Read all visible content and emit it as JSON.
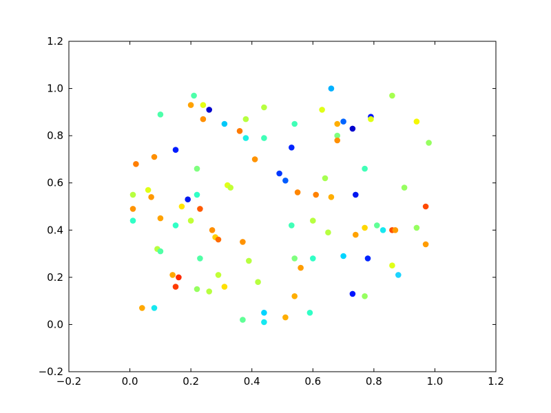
{
  "chart_data": {
    "type": "scatter",
    "title": "",
    "xlabel": "",
    "ylabel": "",
    "xlim": [
      -0.2,
      1.2
    ],
    "ylim": [
      -0.2,
      1.2
    ],
    "xticks": [
      -0.2,
      0.0,
      0.2,
      0.4,
      0.6,
      0.8,
      1.0,
      1.2
    ],
    "yticks": [
      -0.2,
      0.0,
      0.2,
      0.4,
      0.6,
      0.8,
      1.0,
      1.2
    ],
    "xtick_labels": [
      "−0.2",
      "0.0",
      "0.2",
      "0.4",
      "0.6",
      "0.8",
      "1.0",
      "1.2"
    ],
    "ytick_labels": [
      "−0.2",
      "0.0",
      "0.2",
      "0.4",
      "0.6",
      "0.8",
      "1.0",
      "1.2"
    ],
    "grid": false,
    "legend": "none",
    "colormap": "jet",
    "points": [
      {
        "x": 0.66,
        "y": 1.0,
        "color": "#00b0ff"
      },
      {
        "x": 0.21,
        "y": 0.97,
        "color": "#4dffaa"
      },
      {
        "x": 0.86,
        "y": 0.97,
        "color": "#a6ff50"
      },
      {
        "x": 0.2,
        "y": 0.93,
        "color": "#ffa200"
      },
      {
        "x": 0.24,
        "y": 0.93,
        "color": "#e4ff13"
      },
      {
        "x": 0.26,
        "y": 0.91,
        "color": "#0000cd"
      },
      {
        "x": 0.44,
        "y": 0.92,
        "color": "#b7ff40"
      },
      {
        "x": 0.63,
        "y": 0.91,
        "color": "#e0ff17"
      },
      {
        "x": 0.1,
        "y": 0.89,
        "color": "#4dffaa"
      },
      {
        "x": 0.38,
        "y": 0.87,
        "color": "#b7ff40"
      },
      {
        "x": 0.24,
        "y": 0.87,
        "color": "#ff8f00"
      },
      {
        "x": 0.31,
        "y": 0.85,
        "color": "#00c8f8"
      },
      {
        "x": 0.54,
        "y": 0.85,
        "color": "#40ffb7"
      },
      {
        "x": 0.7,
        "y": 0.86,
        "color": "#0064ff"
      },
      {
        "x": 0.68,
        "y": 0.85,
        "color": "#ffae00"
      },
      {
        "x": 0.79,
        "y": 0.88,
        "color": "#0014ff"
      },
      {
        "x": 0.79,
        "y": 0.87,
        "color": "#e0ff17"
      },
      {
        "x": 0.73,
        "y": 0.83,
        "color": "#0000cd"
      },
      {
        "x": 0.94,
        "y": 0.86,
        "color": "#f4f802"
      },
      {
        "x": 0.36,
        "y": 0.82,
        "color": "#ff7a00"
      },
      {
        "x": 0.38,
        "y": 0.79,
        "color": "#1cefe6"
      },
      {
        "x": 0.44,
        "y": 0.79,
        "color": "#40ffb7"
      },
      {
        "x": 0.68,
        "y": 0.8,
        "color": "#7fff7f"
      },
      {
        "x": 0.68,
        "y": 0.78,
        "color": "#ff8f00"
      },
      {
        "x": 0.98,
        "y": 0.77,
        "color": "#96ff60"
      },
      {
        "x": 0.15,
        "y": 0.74,
        "color": "#001cff"
      },
      {
        "x": 0.53,
        "y": 0.75,
        "color": "#0024ff"
      },
      {
        "x": 0.08,
        "y": 0.71,
        "color": "#ff8f00"
      },
      {
        "x": 0.41,
        "y": 0.7,
        "color": "#ff9300"
      },
      {
        "x": 0.02,
        "y": 0.68,
        "color": "#ff7e00"
      },
      {
        "x": 0.22,
        "y": 0.66,
        "color": "#7fff7f"
      },
      {
        "x": 0.77,
        "y": 0.66,
        "color": "#40ffb7"
      },
      {
        "x": 0.49,
        "y": 0.64,
        "color": "#0038ff"
      },
      {
        "x": 0.51,
        "y": 0.61,
        "color": "#005cff"
      },
      {
        "x": 0.64,
        "y": 0.62,
        "color": "#a6ff50"
      },
      {
        "x": 0.32,
        "y": 0.59,
        "color": "#e0ff17"
      },
      {
        "x": 0.33,
        "y": 0.58,
        "color": "#c1ff36"
      },
      {
        "x": 0.9,
        "y": 0.58,
        "color": "#96ff60"
      },
      {
        "x": 0.01,
        "y": 0.55,
        "color": "#b7ff40"
      },
      {
        "x": 0.06,
        "y": 0.57,
        "color": "#e0ff17"
      },
      {
        "x": 0.07,
        "y": 0.54,
        "color": "#ff9800"
      },
      {
        "x": 0.22,
        "y": 0.55,
        "color": "#30ffc6"
      },
      {
        "x": 0.55,
        "y": 0.56,
        "color": "#ff8600"
      },
      {
        "x": 0.61,
        "y": 0.55,
        "color": "#ff8200"
      },
      {
        "x": 0.66,
        "y": 0.54,
        "color": "#ffae00"
      },
      {
        "x": 0.74,
        "y": 0.55,
        "color": "#0018f0"
      },
      {
        "x": 0.19,
        "y": 0.53,
        "color": "#0018f0"
      },
      {
        "x": 0.17,
        "y": 0.5,
        "color": "#ffe600"
      },
      {
        "x": 0.23,
        "y": 0.49,
        "color": "#ff5a00"
      },
      {
        "x": 0.01,
        "y": 0.49,
        "color": "#ff9300"
      },
      {
        "x": 0.97,
        "y": 0.5,
        "color": "#ff4a00"
      },
      {
        "x": 0.1,
        "y": 0.45,
        "color": "#ffa200"
      },
      {
        "x": 0.01,
        "y": 0.44,
        "color": "#30ffc6"
      },
      {
        "x": 0.2,
        "y": 0.44,
        "color": "#c1ff36"
      },
      {
        "x": 0.6,
        "y": 0.44,
        "color": "#b7ff40"
      },
      {
        "x": 0.15,
        "y": 0.42,
        "color": "#30ffc6"
      },
      {
        "x": 0.53,
        "y": 0.42,
        "color": "#40ffb7"
      },
      {
        "x": 0.77,
        "y": 0.41,
        "color": "#ffd700"
      },
      {
        "x": 0.81,
        "y": 0.42,
        "color": "#60ff96"
      },
      {
        "x": 0.83,
        "y": 0.4,
        "color": "#17e8f0"
      },
      {
        "x": 0.86,
        "y": 0.4,
        "color": "#ff5000"
      },
      {
        "x": 0.87,
        "y": 0.4,
        "color": "#ff9c00"
      },
      {
        "x": 0.94,
        "y": 0.41,
        "color": "#96ff60"
      },
      {
        "x": 0.27,
        "y": 0.4,
        "color": "#ff8f00"
      },
      {
        "x": 0.28,
        "y": 0.37,
        "color": "#ffd000"
      },
      {
        "x": 0.29,
        "y": 0.36,
        "color": "#ff6b00"
      },
      {
        "x": 0.37,
        "y": 0.35,
        "color": "#ff9300"
      },
      {
        "x": 0.65,
        "y": 0.39,
        "color": "#b7ff40"
      },
      {
        "x": 0.74,
        "y": 0.38,
        "color": "#ffa200"
      },
      {
        "x": 0.97,
        "y": 0.34,
        "color": "#ff9c00"
      },
      {
        "x": 0.09,
        "y": 0.32,
        "color": "#b7ff40"
      },
      {
        "x": 0.1,
        "y": 0.31,
        "color": "#50ffa6"
      },
      {
        "x": 0.23,
        "y": 0.28,
        "color": "#50ffa6"
      },
      {
        "x": 0.39,
        "y": 0.27,
        "color": "#b7ff40"
      },
      {
        "x": 0.54,
        "y": 0.28,
        "color": "#7fff7f"
      },
      {
        "x": 0.6,
        "y": 0.28,
        "color": "#30ffc6"
      },
      {
        "x": 0.7,
        "y": 0.29,
        "color": "#00d4ff"
      },
      {
        "x": 0.78,
        "y": 0.28,
        "color": "#0024ff"
      },
      {
        "x": 0.86,
        "y": 0.25,
        "color": "#e0ff17"
      },
      {
        "x": 0.56,
        "y": 0.24,
        "color": "#ff9c00"
      },
      {
        "x": 0.88,
        "y": 0.21,
        "color": "#1cd4ff"
      },
      {
        "x": 0.14,
        "y": 0.21,
        "color": "#ffa800"
      },
      {
        "x": 0.16,
        "y": 0.2,
        "color": "#ff2a00"
      },
      {
        "x": 0.29,
        "y": 0.21,
        "color": "#c1ff36"
      },
      {
        "x": 0.42,
        "y": 0.18,
        "color": "#b7ff40"
      },
      {
        "x": 0.15,
        "y": 0.16,
        "color": "#ff3c00"
      },
      {
        "x": 0.31,
        "y": 0.16,
        "color": "#ffe000"
      },
      {
        "x": 0.22,
        "y": 0.15,
        "color": "#96ff60"
      },
      {
        "x": 0.26,
        "y": 0.14,
        "color": "#b7ff40"
      },
      {
        "x": 0.73,
        "y": 0.13,
        "color": "#0014ff"
      },
      {
        "x": 0.77,
        "y": 0.12,
        "color": "#96ff60"
      },
      {
        "x": 0.54,
        "y": 0.12,
        "color": "#ffae00"
      },
      {
        "x": 0.04,
        "y": 0.07,
        "color": "#ffa800"
      },
      {
        "x": 0.08,
        "y": 0.07,
        "color": "#17e8f0"
      },
      {
        "x": 0.44,
        "y": 0.05,
        "color": "#00d4ff"
      },
      {
        "x": 0.59,
        "y": 0.05,
        "color": "#30ffc6"
      },
      {
        "x": 0.51,
        "y": 0.03,
        "color": "#ffae00"
      },
      {
        "x": 0.37,
        "y": 0.02,
        "color": "#60ff96"
      },
      {
        "x": 0.44,
        "y": 0.01,
        "color": "#17e8f0"
      }
    ]
  }
}
